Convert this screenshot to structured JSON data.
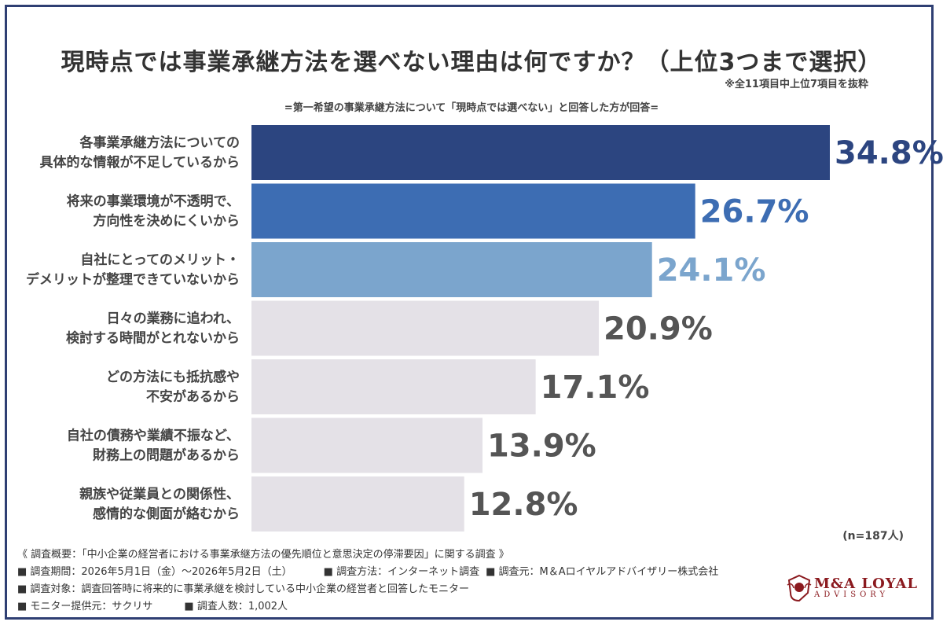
{
  "title": "現時点では事業承継方法を選べない理由は何ですか？（上位3つまで選択）",
  "note_right": "※全11項目中上位7項目を抜粋",
  "subtitle": "=第一希望の事業承継方法について「現時点では選べない」と回答した方が回答=",
  "sample_size": "(n=187人)",
  "colors": {
    "bar_top1": "#2c4580",
    "bar_top2": "#3d6db3",
    "bar_top3": "#7ba5cd",
    "bar_rest": "#e4e1e7",
    "label_top1": "#2c4580",
    "label_top2": "#3d6db3",
    "label_top3": "#7ba5cd",
    "label_rest": "#555555",
    "frame": "#2f3f73",
    "brand": "#8b1a1f"
  },
  "chart_data": {
    "type": "bar",
    "orientation": "horizontal",
    "unit": "%",
    "xlim": [
      0,
      34.8
    ],
    "categories": [
      [
        "各事業承継方法についての",
        "具体的な情報が不足しているから"
      ],
      [
        "将来の事業環境が不透明で、",
        "方向性を決めにくいから"
      ],
      [
        "自社にとってのメリット・",
        "デメリットが整理できていないから"
      ],
      [
        "日々の業務に追われ、",
        "検討する時間がとれないから"
      ],
      [
        "どの方法にも抵抗感や",
        "不安があるから"
      ],
      [
        "自社の債務や業績不振など、",
        "財務上の問題があるから"
      ],
      [
        "親族や従業員との関係性、",
        "感情的な側面が絡むから"
      ]
    ],
    "values": [
      34.8,
      26.7,
      24.1,
      20.9,
      17.1,
      13.9,
      12.8
    ],
    "value_labels": [
      "34.8%",
      "26.7%",
      "24.1%",
      "20.9%",
      "17.1%",
      "13.9%",
      "12.8%"
    ]
  },
  "footer": {
    "overview": "《 調査概要：「中小企業の経営者における事業承継方法の優先順位と意思決定の停滞要因」に関する調査 》",
    "period": "■ 調査期間：2026年5月1日（金）～2026年5月2日（土）",
    "method": "■ 調査方法：インターネット調査",
    "org": "■ 調査元：M＆Aロイヤルアドバイザリー株式会社",
    "target": "■ 調査対象：調査回答時に将来的に事業承継を検討している中小企業の経営者と回答したモニター",
    "provider": "■ モニター提供元：サクリサ",
    "count": "■ 調査人数：1,002人"
  },
  "logo": {
    "main": "M&A LOYAL",
    "sub": "ADVISORY",
    "icon": "crest-icon"
  }
}
